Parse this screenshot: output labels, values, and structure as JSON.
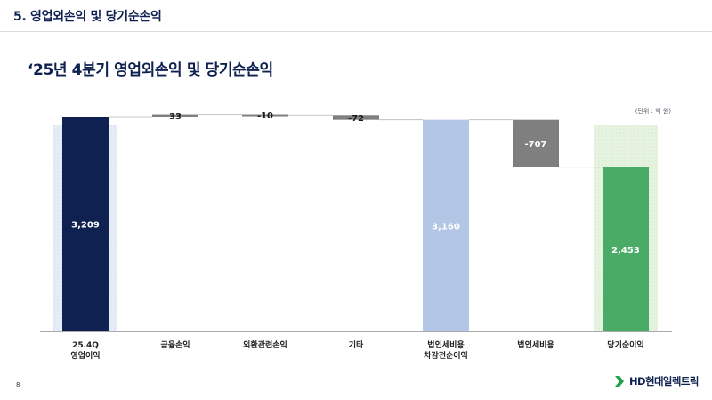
{
  "header": {
    "section_title": "5. 영업외손익 및 당기순손익",
    "slide_title": "‘25년 4분기 영업외손익 및 당기순손익",
    "unit": "(단위 : 억 원)"
  },
  "footer": {
    "page_number": "8",
    "logo_text": "HD현대일렉트릭"
  },
  "colors": {
    "navy": "#0e2150",
    "light_blue": "#b3c6e6",
    "gray": "#7f7f7f",
    "green": "#4aab67",
    "green_bg": "#e7f3e1",
    "blue_bg": "#e7edf7"
  },
  "chart_data": {
    "type": "bar",
    "subtype": "waterfall",
    "categories": [
      [
        "25.4Q",
        "영업이익"
      ],
      [
        "금융손익"
      ],
      [
        "외환관련손익"
      ],
      [
        "기타"
      ],
      [
        "법인세비용",
        "차감전순이익"
      ],
      [
        "법인세비용"
      ],
      [
        "당기순이익"
      ]
    ],
    "values": [
      3209,
      33,
      -10,
      -72,
      3160,
      -707,
      2453
    ],
    "value_labels": [
      "3,209",
      "33",
      "-10",
      "-72",
      "3,160",
      "-707",
      "2,453"
    ],
    "kinds": [
      "total",
      "delta",
      "delta",
      "delta",
      "total",
      "delta",
      "total"
    ],
    "bar_colors": [
      "#0e2150",
      "#7f7f7f",
      "#7f7f7f",
      "#7f7f7f",
      "#b3c6e6",
      "#7f7f7f",
      "#4aab67"
    ],
    "label_colors": [
      "#ffffff",
      "#1b1b1b",
      "#1b1b1b",
      "#1b1b1b",
      "#ffffff",
      "#ffffff",
      "#ffffff"
    ],
    "highlighted": [
      0,
      6
    ],
    "ylim": [
      0,
      3209
    ],
    "unit": "억 원"
  }
}
